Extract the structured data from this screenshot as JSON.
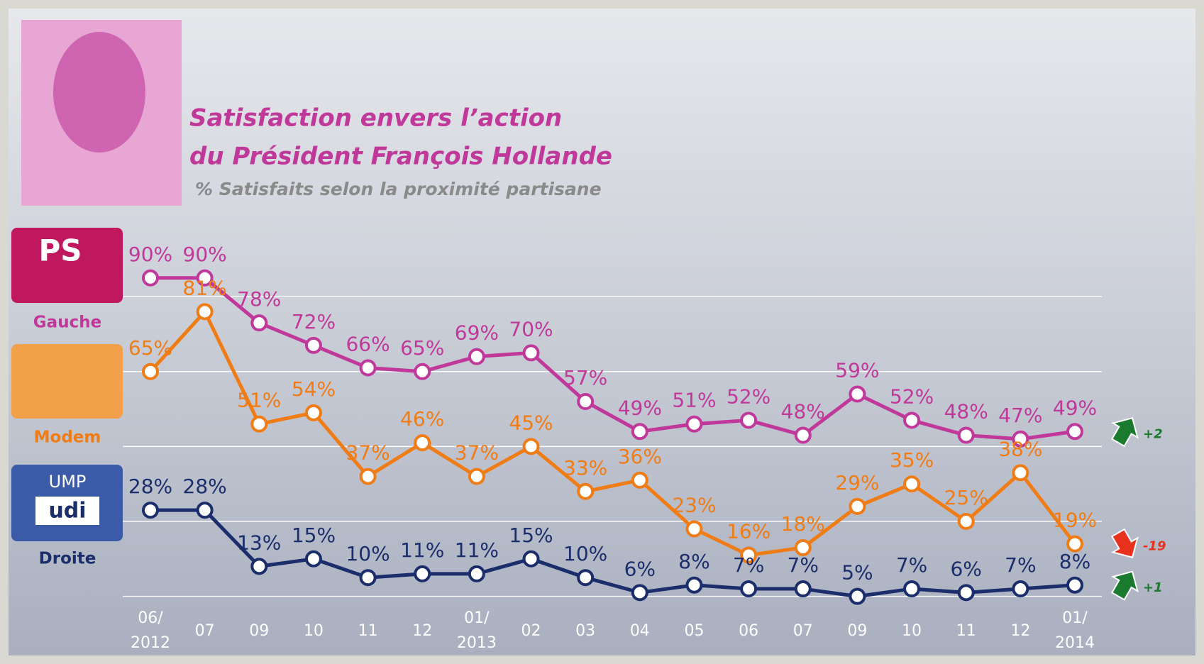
{
  "chart_data": {
    "type": "line",
    "title": [
      "Satisfaction envers l’action",
      "du Président François Hollande"
    ],
    "subtitle": "% Satisfaits selon la proximité partisane",
    "categories": [
      "06/\n2012",
      "07",
      "09",
      "10",
      "11",
      "12",
      "01/\n2013",
      "02",
      "03",
      "04",
      "05",
      "06",
      "07",
      "09",
      "10",
      "11",
      "12",
      "01/\n2014"
    ],
    "ylim": [
      0,
      100
    ],
    "yticks": [
      5,
      25,
      45,
      65,
      85
    ],
    "grid": true,
    "logos": [
      "PS",
      "UMP",
      "udi"
    ],
    "series": [
      {
        "name": "Gauche",
        "color": "#c0399a",
        "values": [
          90,
          90,
          78,
          72,
          66,
          65,
          69,
          70,
          57,
          49,
          51,
          52,
          48,
          59,
          52,
          48,
          47,
          49
        ],
        "value_labels": [
          "90%",
          "90%",
          "78%",
          "72%",
          "66%",
          "65%",
          "69%",
          "70%",
          "57%",
          "49%",
          "51%",
          "52%",
          "48%",
          "59%",
          "52%",
          "48%",
          "47%",
          "49%"
        ],
        "change": "+2",
        "change_direction": "up",
        "change_color": "#1a7a2e"
      },
      {
        "name": "Modem",
        "color": "#f07c16",
        "values": [
          65,
          81,
          51,
          54,
          37,
          46,
          37,
          45,
          33,
          36,
          23,
          16,
          18,
          29,
          35,
          25,
          38,
          19
        ],
        "value_labels": [
          "65%",
          "81%",
          "51%",
          "54%",
          "37%",
          "46%",
          "37%",
          "45%",
          "33%",
          "36%",
          "23%",
          "16%",
          "18%",
          "29%",
          "35%",
          "25%",
          "38%",
          "19%"
        ],
        "change": "-19",
        "change_direction": "down",
        "change_color": "#e8321e"
      },
      {
        "name": "Droite",
        "color": "#1b2d6b",
        "values": [
          28,
          28,
          13,
          15,
          10,
          11,
          11,
          15,
          10,
          6,
          8,
          7,
          7,
          5,
          7,
          6,
          7,
          8
        ],
        "value_labels": [
          "28%",
          "28%",
          "13%",
          "15%",
          "10%",
          "11%",
          "11%",
          "15%",
          "10%",
          "6%",
          "8%",
          "7%",
          "7%",
          "5%",
          "7%",
          "6%",
          "7%",
          "8%"
        ],
        "change": "+1",
        "change_direction": "up",
        "change_color": "#1a7a2e"
      }
    ]
  }
}
